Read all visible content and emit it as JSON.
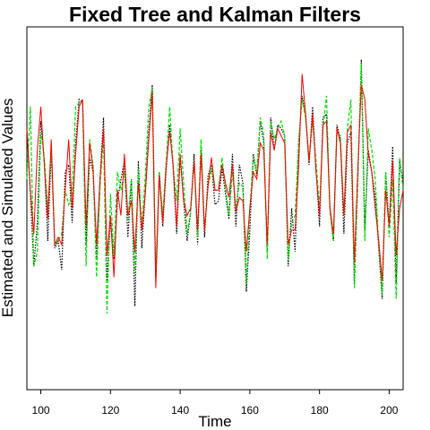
{
  "chart_data": {
    "type": "line",
    "title": "Fixed Tree and Kalman Filters",
    "xlabel": "Time",
    "ylabel": "Estimated and Simulated Values",
    "xlim": [
      96,
      204
    ],
    "ylim": [
      0,
      1
    ],
    "xticks": [
      100,
      120,
      140,
      160,
      180,
      200
    ],
    "x_start": 96,
    "x_end": 204,
    "series": [
      {
        "name": "black dotted",
        "color": "#000000",
        "style": "dotted",
        "values": [
          0.72,
          0.54,
          0.34,
          0.46,
          0.74,
          0.63,
          0.41,
          0.66,
          0.39,
          0.41,
          0.33,
          0.6,
          0.62,
          0.46,
          0.68,
          0.8,
          0.79,
          0.4,
          0.64,
          0.6,
          0.36,
          0.58,
          0.75,
          0.3,
          0.47,
          0.36,
          0.52,
          0.58,
          0.63,
          0.42,
          0.58,
          0.23,
          0.63,
          0.39,
          0.55,
          0.71,
          0.84,
          0.31,
          0.6,
          0.45,
          0.61,
          0.73,
          0.61,
          0.43,
          0.64,
          0.52,
          0.41,
          0.49,
          0.65,
          0.4,
          0.67,
          0.42,
          0.59,
          0.62,
          0.51,
          0.52,
          0.61,
          0.54,
          0.47,
          0.65,
          0.45,
          0.62,
          0.57,
          0.27,
          0.44,
          0.65,
          0.59,
          0.74,
          0.68,
          0.38,
          0.75,
          0.66,
          0.73,
          0.72,
          0.7,
          0.34,
          0.5,
          0.38,
          0.68,
          0.81,
          0.76,
          0.62,
          0.78,
          0.61,
          0.45,
          0.75,
          0.76,
          0.5,
          0.41,
          0.73,
          0.69,
          0.43,
          0.68,
          0.71,
          0.29,
          0.58,
          0.91,
          0.44,
          0.66,
          0.6,
          0.53,
          0.39,
          0.25,
          0.6,
          0.45,
          0.67,
          0.29,
          0.63,
          0.57
        ]
      },
      {
        "name": "green dashed",
        "color": "#00dd00",
        "style": "dashed",
        "values": [
          0.58,
          0.78,
          0.34,
          0.38,
          0.71,
          0.64,
          0.5,
          0.66,
          0.4,
          0.41,
          0.43,
          0.55,
          0.51,
          0.54,
          0.78,
          0.79,
          0.79,
          0.34,
          0.69,
          0.62,
          0.31,
          0.56,
          0.7,
          0.21,
          0.54,
          0.37,
          0.6,
          0.55,
          0.6,
          0.47,
          0.58,
          0.32,
          0.61,
          0.45,
          0.59,
          0.78,
          0.83,
          0.3,
          0.6,
          0.48,
          0.63,
          0.78,
          0.61,
          0.52,
          0.72,
          0.57,
          0.43,
          0.49,
          0.63,
          0.42,
          0.69,
          0.44,
          0.56,
          0.61,
          0.55,
          0.55,
          0.64,
          0.56,
          0.48,
          0.6,
          0.5,
          0.57,
          0.56,
          0.29,
          0.5,
          0.64,
          0.6,
          0.75,
          0.7,
          0.36,
          0.74,
          0.69,
          0.72,
          0.74,
          0.7,
          0.36,
          0.46,
          0.48,
          0.68,
          0.8,
          0.75,
          0.63,
          0.74,
          0.63,
          0.5,
          0.72,
          0.81,
          0.49,
          0.41,
          0.71,
          0.7,
          0.48,
          0.72,
          0.8,
          0.28,
          0.58,
          0.9,
          0.41,
          0.72,
          0.66,
          0.58,
          0.4,
          0.26,
          0.6,
          0.42,
          0.58,
          0.25,
          0.64,
          0.55
        ]
      },
      {
        "name": "red solid",
        "color": "#ff0000",
        "style": "solid",
        "values": [
          0.72,
          0.55,
          0.43,
          0.66,
          0.78,
          0.62,
          0.47,
          0.69,
          0.4,
          0.42,
          0.4,
          0.55,
          0.69,
          0.5,
          0.65,
          0.78,
          0.8,
          0.45,
          0.68,
          0.61,
          0.4,
          0.58,
          0.72,
          0.37,
          0.48,
          0.31,
          0.55,
          0.48,
          0.65,
          0.48,
          0.52,
          0.38,
          0.57,
          0.44,
          0.54,
          0.69,
          0.82,
          0.28,
          0.59,
          0.46,
          0.62,
          0.71,
          0.62,
          0.45,
          0.65,
          0.52,
          0.48,
          0.5,
          0.63,
          0.44,
          0.65,
          0.44,
          0.56,
          0.64,
          0.55,
          0.55,
          0.62,
          0.57,
          0.53,
          0.62,
          0.49,
          0.53,
          0.52,
          0.38,
          0.5,
          0.6,
          0.58,
          0.68,
          0.66,
          0.4,
          0.71,
          0.66,
          0.72,
          0.7,
          0.68,
          0.4,
          0.44,
          0.44,
          0.61,
          0.87,
          0.76,
          0.63,
          0.76,
          0.6,
          0.48,
          0.73,
          0.74,
          0.5,
          0.43,
          0.72,
          0.68,
          0.48,
          0.71,
          0.73,
          0.35,
          0.61,
          0.84,
          0.8,
          0.65,
          0.6,
          0.5,
          0.41,
          0.3,
          0.55,
          0.45,
          0.63,
          0.37,
          0.5,
          0.55
        ]
      }
    ]
  }
}
